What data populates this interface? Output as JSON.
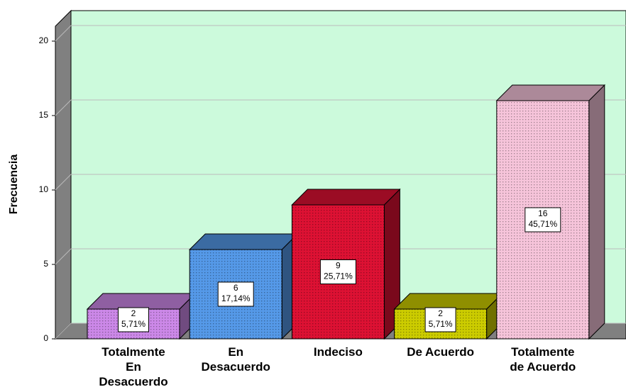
{
  "chart_data": {
    "type": "bar3d",
    "y_label": "Frecuencia",
    "categories": [
      "Totalmente\nEn\nDesacuerdo",
      "En\nDesacuerdo",
      "Indeciso",
      "De Acuerdo",
      "Totalmente\nde Acuerdo"
    ],
    "values": [
      2,
      6,
      9,
      2,
      16
    ],
    "percent_labels": [
      "5,71%",
      "17,14%",
      "25,71%",
      "5,71%",
      "45,71%"
    ],
    "colors": [
      "#cc88e8",
      "#5599e8",
      "#dd1133",
      "#cccc00",
      "#f6c4da"
    ],
    "ylim": [
      0,
      21
    ],
    "yticks": [
      0,
      5,
      10,
      15,
      20
    ],
    "grid": true
  }
}
